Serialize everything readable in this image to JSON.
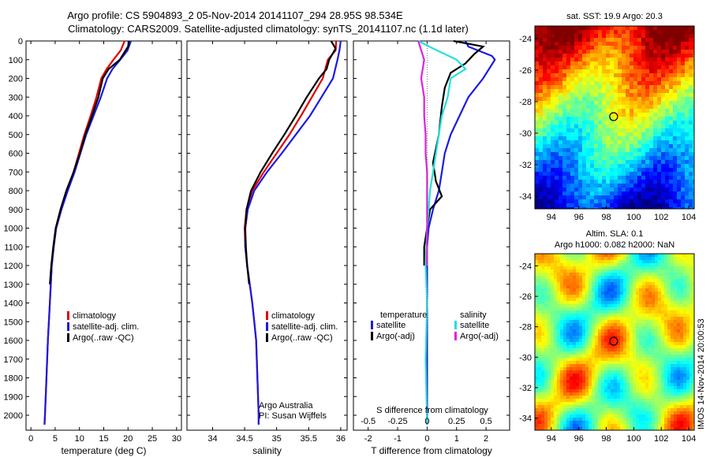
{
  "figure": {
    "title_line1": "Argo profile: CS 5904893_2 05-Nov-2014 20141107_294 28.95S 98.534E",
    "title_line2": "Climatology: CARS2009. Satellite-adjusted climatology: synTS_20141107.nc (1.1d later)",
    "credit": "IMOS 14-Nov-2014 20:00:53",
    "colors": {
      "climatology": "#e00000",
      "satellite": "#1a1ae6",
      "argo": "#000000",
      "sat_salinity": "#22e0e0",
      "argo_salinity": "#e020e0"
    }
  },
  "chart_data": [
    {
      "type": "line",
      "id": "temperature",
      "xlabel": "temperature (deg C)",
      "xlim": [
        -1,
        31
      ],
      "ylim": [
        2080,
        0
      ],
      "xticks": [
        0,
        5,
        10,
        15,
        20,
        25,
        30
      ],
      "yticks": [
        0,
        100,
        200,
        300,
        400,
        500,
        600,
        700,
        800,
        900,
        1000,
        1100,
        1200,
        1300,
        1400,
        1500,
        1600,
        1700,
        1800,
        1900,
        2000
      ],
      "legend": [
        "climatology",
        "satellite-adj. clim.",
        "Argo(..raw -QC)"
      ],
      "series": [
        {
          "name": "climatology",
          "points": [
            [
              19.3,
              0
            ],
            [
              18.5,
              50
            ],
            [
              17.0,
              100
            ],
            [
              15.6,
              150
            ],
            [
              14.5,
              200
            ],
            [
              13.5,
              300
            ],
            [
              12.3,
              400
            ],
            [
              11.0,
              500
            ],
            [
              9.9,
              600
            ],
            [
              8.8,
              700
            ],
            [
              7.5,
              800
            ],
            [
              6.3,
              900
            ],
            [
              5.2,
              1000
            ],
            [
              4.7,
              1100
            ],
            [
              4.3,
              1200
            ],
            [
              3.9,
              1400
            ],
            [
              3.5,
              1600
            ],
            [
              3.2,
              1800
            ],
            [
              2.9,
              2000
            ],
            [
              2.8,
              2050
            ]
          ]
        },
        {
          "name": "satellite-adj. clim.",
          "points": [
            [
              20.6,
              0
            ],
            [
              19.9,
              50
            ],
            [
              18.4,
              100
            ],
            [
              16.8,
              150
            ],
            [
              15.7,
              200
            ],
            [
              14.4,
              300
            ],
            [
              12.9,
              400
            ],
            [
              11.4,
              500
            ],
            [
              10.2,
              600
            ],
            [
              9.0,
              700
            ],
            [
              7.6,
              800
            ],
            [
              6.3,
              900
            ],
            [
              5.2,
              1000
            ],
            [
              4.7,
              1100
            ],
            [
              4.3,
              1200
            ],
            [
              3.9,
              1400
            ],
            [
              3.5,
              1600
            ],
            [
              3.2,
              1800
            ],
            [
              2.9,
              2000
            ],
            [
              2.8,
              2050
            ]
          ]
        },
        {
          "name": "Argo(..raw -QC)",
          "points": [
            [
              20.2,
              0
            ],
            [
              20.0,
              30
            ],
            [
              18.3,
              100
            ],
            [
              16.0,
              150
            ],
            [
              14.8,
              200
            ],
            [
              13.9,
              300
            ],
            [
              12.6,
              400
            ],
            [
              11.2,
              500
            ],
            [
              10.1,
              600
            ],
            [
              8.8,
              700
            ],
            [
              7.3,
              800
            ],
            [
              6.1,
              900
            ],
            [
              5.1,
              1000
            ],
            [
              4.6,
              1100
            ],
            [
              4.2,
              1200
            ],
            [
              3.9,
              1300
            ]
          ]
        }
      ]
    },
    {
      "type": "line",
      "id": "salinity",
      "xlabel": "salinity",
      "xlim": [
        33.6,
        36.1
      ],
      "ylim": [
        2080,
        0
      ],
      "xticks": [
        34,
        34.5,
        35,
        35.5,
        36
      ],
      "legend": [
        "climatology",
        "satellite-adj. clim.",
        "Argo(..raw -QC)"
      ],
      "annotation": [
        "Argo Australia",
        "PI: Susan Wijffels"
      ],
      "series": [
        {
          "name": "climatology",
          "points": [
            [
              35.93,
              0
            ],
            [
              35.92,
              50
            ],
            [
              35.8,
              100
            ],
            [
              35.72,
              200
            ],
            [
              35.55,
              300
            ],
            [
              35.38,
              400
            ],
            [
              35.2,
              500
            ],
            [
              35.0,
              600
            ],
            [
              34.8,
              700
            ],
            [
              34.62,
              800
            ],
            [
              34.53,
              900
            ],
            [
              34.5,
              1000
            ],
            [
              34.51,
              1100
            ],
            [
              34.54,
              1200
            ],
            [
              34.58,
              1300
            ],
            [
              34.62,
              1400
            ],
            [
              34.65,
              1500
            ],
            [
              34.68,
              1600
            ],
            [
              34.7,
              1800
            ],
            [
              34.72,
              2000
            ],
            [
              34.72,
              2050
            ]
          ]
        },
        {
          "name": "satellite-adj. clim.",
          "points": [
            [
              36.0,
              0
            ],
            [
              35.98,
              50
            ],
            [
              35.95,
              100
            ],
            [
              35.88,
              200
            ],
            [
              35.7,
              300
            ],
            [
              35.52,
              400
            ],
            [
              35.3,
              500
            ],
            [
              35.08,
              600
            ],
            [
              34.85,
              700
            ],
            [
              34.65,
              800
            ],
            [
              34.55,
              900
            ],
            [
              34.51,
              1000
            ],
            [
              34.51,
              1100
            ],
            [
              34.54,
              1200
            ],
            [
              34.58,
              1300
            ],
            [
              34.62,
              1400
            ],
            [
              34.65,
              1500
            ],
            [
              34.68,
              1600
            ],
            [
              34.7,
              1800
            ],
            [
              34.72,
              2000
            ],
            [
              34.72,
              2050
            ]
          ]
        },
        {
          "name": "Argo(..raw -QC)",
          "points": [
            [
              35.85,
              0
            ],
            [
              35.92,
              40
            ],
            [
              35.82,
              100
            ],
            [
              35.78,
              150
            ],
            [
              35.66,
              200
            ],
            [
              35.47,
              300
            ],
            [
              35.3,
              400
            ],
            [
              35.12,
              500
            ],
            [
              34.93,
              600
            ],
            [
              34.75,
              700
            ],
            [
              34.6,
              800
            ],
            [
              34.53,
              900
            ],
            [
              34.51,
              1000
            ],
            [
              34.52,
              1100
            ],
            [
              34.54,
              1200
            ],
            [
              34.57,
              1300
            ]
          ]
        }
      ]
    },
    {
      "type": "line",
      "id": "difference",
      "xlabel": "T difference from climatology",
      "xlabel_top": "S difference from climatology",
      "xlim": [
        -2.5,
        2.8
      ],
      "ylim": [
        2080,
        0
      ],
      "xticks": [
        -2,
        -1,
        0,
        1,
        2
      ],
      "xticks_s": [
        "-0.5",
        "-0.25",
        "0",
        "0.25",
        "0.5"
      ],
      "legend_headers": [
        "temperature",
        "salinity"
      ],
      "legend": [
        "satellite",
        "Argo(-adj)",
        "satellite",
        "Argo(-adj)"
      ],
      "series": [
        {
          "name": "satellite",
          "group": "temperature",
          "points": [
            [
              1.3,
              0
            ],
            [
              1.4,
              30
            ],
            [
              2.2,
              80
            ],
            [
              2.3,
              100
            ],
            [
              1.9,
              200
            ],
            [
              1.4,
              300
            ],
            [
              1.1,
              400
            ],
            [
              0.8,
              500
            ],
            [
              0.6,
              600
            ],
            [
              0.5,
              700
            ],
            [
              0.4,
              800
            ],
            [
              0.2,
              900
            ],
            [
              0.05,
              1000
            ],
            [
              0,
              1100
            ],
            [
              0,
              1400
            ],
            [
              0,
              2050
            ]
          ]
        },
        {
          "name": "Argo(-adj)",
          "group": "temperature",
          "points": [
            [
              0.9,
              0
            ],
            [
              1.9,
              30
            ],
            [
              1.6,
              70
            ],
            [
              1.3,
              120
            ],
            [
              0.8,
              170
            ],
            [
              0.6,
              250
            ],
            [
              0.5,
              350
            ],
            [
              0.4,
              500
            ],
            [
              0.2,
              650
            ],
            [
              0.3,
              750
            ],
            [
              0.5,
              830
            ],
            [
              0.1,
              900
            ],
            [
              0.0,
              1000
            ],
            [
              -0.1,
              1100
            ],
            [
              -0.1,
              1200
            ]
          ]
        },
        {
          "name": "satellite",
          "group": "salinity",
          "points": [
            [
              -0.3,
              0
            ],
            [
              0.2,
              40
            ],
            [
              1.0,
              100
            ],
            [
              1.3,
              150
            ],
            [
              0.8,
              200
            ],
            [
              0.7,
              300
            ],
            [
              0.5,
              400
            ],
            [
              0.4,
              500
            ],
            [
              0.3,
              600
            ],
            [
              0.2,
              700
            ],
            [
              0.1,
              800
            ],
            [
              0.05,
              900
            ],
            [
              0,
              1000
            ],
            [
              -0.05,
              1200
            ],
            [
              0,
              1400
            ],
            [
              -0.05,
              1700
            ],
            [
              0,
              2050
            ]
          ]
        },
        {
          "name": "Argo(-adj)",
          "group": "salinity",
          "points": [
            [
              -0.3,
              0
            ],
            [
              -0.1,
              100
            ],
            [
              -0.2,
              200
            ],
            [
              -0.1,
              300
            ],
            [
              -0.1,
              400
            ],
            [
              -0.05,
              500
            ],
            [
              -0.05,
              600
            ],
            [
              0,
              700
            ],
            [
              0,
              800
            ],
            [
              0,
              900
            ],
            [
              0.0,
              1000
            ],
            [
              0,
              1100
            ],
            [
              0.0,
              1200
            ]
          ]
        }
      ]
    },
    {
      "type": "heatmap",
      "id": "sst_map",
      "title": "sat. SST: 19.9 Argo: 20.3",
      "xlim": [
        92.8,
        104.4
      ],
      "ylim": [
        -34.8,
        -23.2
      ],
      "xticks": [
        94,
        96,
        98,
        100,
        102,
        104
      ],
      "yticks": [
        -24,
        -26,
        -28,
        -30,
        -32,
        -34
      ],
      "marker": [
        98.534,
        -28.95
      ]
    },
    {
      "type": "heatmap",
      "id": "sla_map",
      "title_line1": "Altim. SLA: 0.1",
      "title_line2": "Argo h1000: 0.082 h2000: NaN",
      "xlim": [
        92.8,
        104.4
      ],
      "ylim": [
        -34.8,
        -23.2
      ],
      "xticks": [
        94,
        96,
        98,
        100,
        102,
        104
      ],
      "yticks": [
        -24,
        -26,
        -28,
        -30,
        -32,
        -34
      ],
      "marker": [
        98.534,
        -28.95
      ]
    }
  ]
}
